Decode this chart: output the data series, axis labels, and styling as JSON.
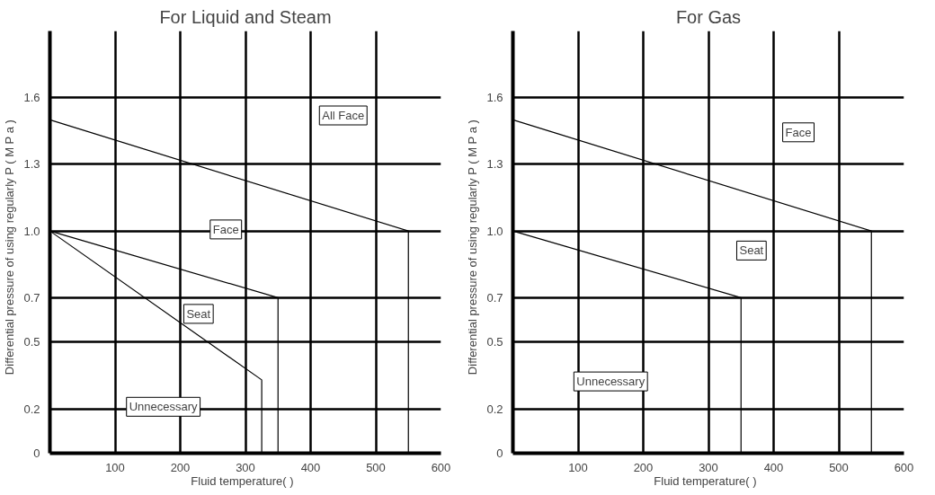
{
  "chart_data": [
    {
      "type": "line",
      "title": "For Liquid and Steam",
      "xlabel": "Fluid temperature(   )",
      "ylabel": "Differential pressure of using regularly    P ( M P a )",
      "xlim": [
        0,
        600
      ],
      "ylim": [
        0,
        1.9
      ],
      "xticks": [
        100,
        200,
        300,
        400,
        500,
        600
      ],
      "yticks": [
        0,
        0.2,
        0.5,
        0.7,
        {
          "value": 1.0,
          "label": "1.0"
        },
        1.3,
        1.6
      ],
      "grid": true,
      "line_style": "solid",
      "series": [
        {
          "color": "#000000",
          "x": [
            0,
            550,
            550
          ],
          "values": [
            1.5,
            1.0,
            0
          ]
        },
        {
          "color": "#000000",
          "x": [
            0,
            350,
            350
          ],
          "values": [
            1.0,
            0.7,
            0
          ]
        },
        {
          "color": "#000000",
          "x": [
            0,
            325,
            325
          ],
          "values": [
            1.0,
            0.33,
            0
          ]
        }
      ],
      "annotations": [
        "All Face",
        "Face",
        "Seat",
        "Unnecessary"
      ]
    },
    {
      "type": "line",
      "title": "For Gas",
      "xlabel": "Fluid temperature(   )",
      "ylabel": "Differential pressure of using regularly    P ( M P a )",
      "xlim": [
        0,
        600
      ],
      "ylim": [
        0,
        1.9
      ],
      "xticks": [
        100,
        200,
        300,
        400,
        500,
        600
      ],
      "yticks": [
        0,
        0.2,
        0.5,
        0.7,
        {
          "value": 1.0,
          "label": "1.0"
        },
        1.3,
        1.6
      ],
      "grid": true,
      "line_style": "solid",
      "series": [
        {
          "color": "#000000",
          "x": [
            0,
            550,
            550
          ],
          "values": [
            1.5,
            1.0,
            0
          ]
        },
        {
          "color": "#000000",
          "x": [
            0,
            350,
            350
          ],
          "values": [
            1.0,
            0.7,
            0
          ]
        }
      ],
      "annotations": [
        "Face",
        "Seat",
        "Unnecessary"
      ]
    }
  ]
}
